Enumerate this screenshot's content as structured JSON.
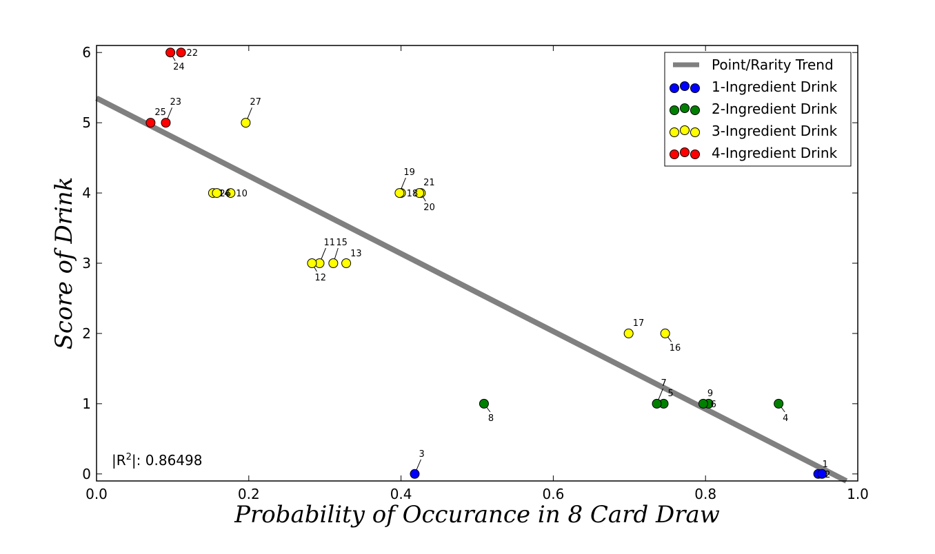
{
  "chart_data": {
    "type": "scatter",
    "xlabel": "Probability of Occurance in 8 Card Draw",
    "ylabel": "Score of Drink",
    "xlim": [
      0.0,
      1.0
    ],
    "ylim": [
      -0.1,
      6.1
    ],
    "xticks": [
      "0.0",
      "0.2",
      "0.4",
      "0.6",
      "0.8",
      "1.0"
    ],
    "yticks": [
      "0",
      "1",
      "2",
      "3",
      "4",
      "5",
      "6"
    ],
    "grid": false,
    "legend_position": "top-right",
    "trend": {
      "name": "Point/Rarity Trend",
      "x": [
        0.0,
        0.985
      ],
      "y": [
        5.35,
        -0.1
      ],
      "color": "#808080"
    },
    "r2_label": "|R",
    "r2_sup": "2",
    "r2_value": "|: 0.86498",
    "series": [
      {
        "name": "1-Ingredient Drink",
        "color": "#0000ff",
        "points": [
          {
            "label": "1",
            "x": 0.948,
            "y": 0
          },
          {
            "label": "2",
            "x": 0.953,
            "y": 0
          },
          {
            "label": "3",
            "x": 0.418,
            "y": 0
          }
        ]
      },
      {
        "name": "2-Ingredient Drink",
        "color": "#008000",
        "points": [
          {
            "label": "4",
            "x": 0.896,
            "y": 1
          },
          {
            "label": "5",
            "x": 0.745,
            "y": 1
          },
          {
            "label": "6",
            "x": 0.804,
            "y": 1
          },
          {
            "label": "7",
            "x": 0.736,
            "y": 1
          },
          {
            "label": "8",
            "x": 0.509,
            "y": 1
          },
          {
            "label": "9",
            "x": 0.797,
            "y": 1
          }
        ]
      },
      {
        "name": "3-Ingredient Drink",
        "color": "#ffff00",
        "points": [
          {
            "label": "10",
            "x": 0.176,
            "y": 4
          },
          {
            "label": "11",
            "x": 0.293,
            "y": 3
          },
          {
            "label": "12",
            "x": 0.283,
            "y": 3
          },
          {
            "label": "13",
            "x": 0.328,
            "y": 3
          },
          {
            "label": "14",
            "x": 0.153,
            "y": 4
          },
          {
            "label": "15",
            "x": 0.311,
            "y": 3
          },
          {
            "label": "16",
            "x": 0.747,
            "y": 2
          },
          {
            "label": "17",
            "x": 0.699,
            "y": 2
          },
          {
            "label": "18",
            "x": 0.4,
            "y": 4
          },
          {
            "label": "19",
            "x": 0.398,
            "y": 4
          },
          {
            "label": "20",
            "x": 0.426,
            "y": 4
          },
          {
            "label": "21",
            "x": 0.424,
            "y": 4
          },
          {
            "label": "26",
            "x": 0.158,
            "y": 4
          },
          {
            "label": "27",
            "x": 0.196,
            "y": 5
          }
        ]
      },
      {
        "name": "4-Ingredient Drink",
        "color": "#ff0000",
        "points": [
          {
            "label": "22",
            "x": 0.111,
            "y": 6
          },
          {
            "label": "23",
            "x": 0.091,
            "y": 5
          },
          {
            "label": "24",
            "x": 0.097,
            "y": 6
          },
          {
            "label": "25",
            "x": 0.071,
            "y": 5
          }
        ]
      }
    ]
  }
}
